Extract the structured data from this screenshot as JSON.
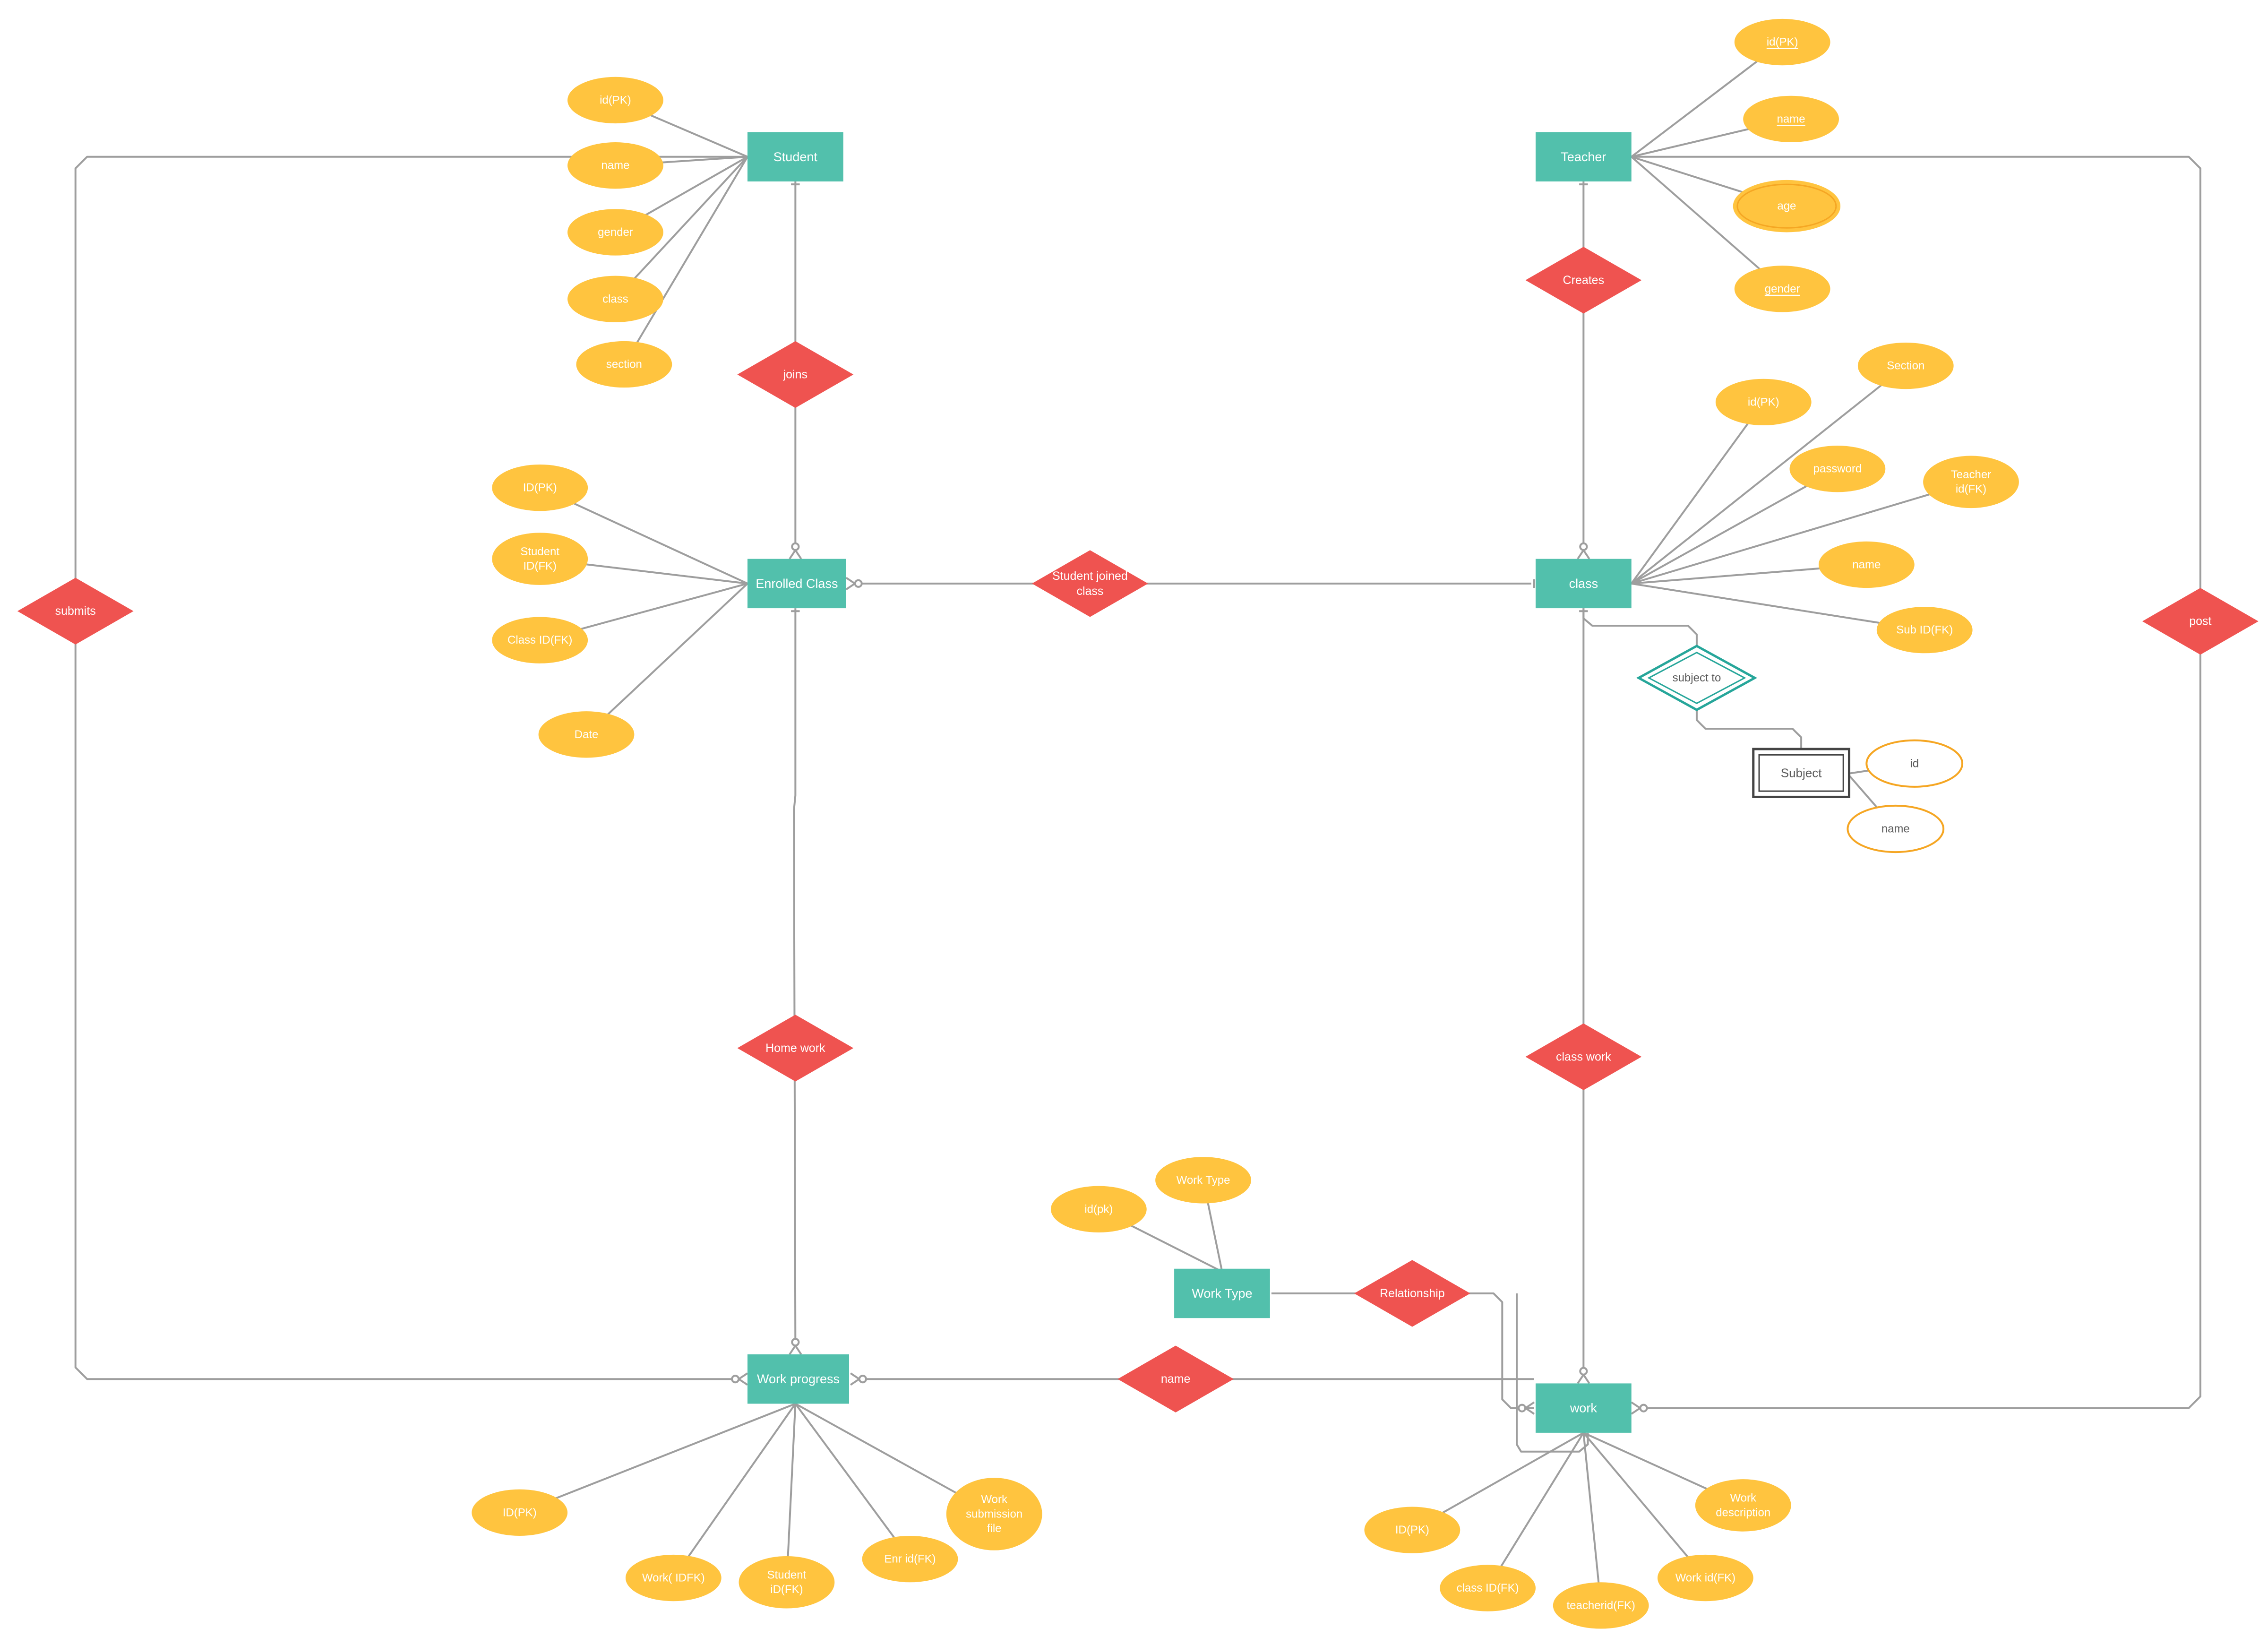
{
  "colors": {
    "entity": "#52c0ac",
    "relationship": "#ef5350",
    "attribute": "#ffc43f",
    "line": "#9e9e9e",
    "weak_entity_stroke": "#444444",
    "identifying_rel_stroke": "#26a69a",
    "weak_attr_stroke": "#f5a623",
    "label_light": "#ffffff",
    "label_dark": "#5a5a5a"
  },
  "entities": {
    "student": "Student",
    "teacher": "Teacher",
    "enrolled_class": "Enrolled Class",
    "class": "class",
    "work_progress": "Work progress",
    "work_type": "Work Type",
    "work": "work",
    "subject": "Subject"
  },
  "relationships": {
    "joins": "joins",
    "creates": "Creates",
    "student_joined_class": [
      "Student joined",
      "class"
    ],
    "submits": "submits",
    "post": "post",
    "subject_to": "subject to",
    "home_work": "Home work",
    "class_work": "class work",
    "relationship": "Relationship",
    "name": "name"
  },
  "attributes": {
    "student": [
      "id(PK)",
      "name",
      "gender",
      "class",
      "section"
    ],
    "teacher": [
      "id(PK)",
      "name",
      "age",
      "gender"
    ],
    "enrolled_class": [
      "ID(PK)",
      [
        "Student",
        "ID(FK)"
      ],
      "Class ID(FK)",
      "Date"
    ],
    "class": [
      "id(PK)",
      "Section",
      "password",
      [
        "Teacher",
        "id(FK)"
      ],
      "name",
      "Sub ID(FK)"
    ],
    "subject": [
      "id",
      "name"
    ],
    "work_type": [
      "id(pk)",
      "Work Type"
    ],
    "work_progress": [
      "ID(PK)",
      "Work( IDFK)",
      [
        "Student",
        "iD(FK)"
      ],
      "Enr id(FK)",
      [
        "Work",
        "submission",
        "file"
      ]
    ],
    "work": [
      "ID(PK)",
      "class ID(FK)",
      "teacherid(FK)",
      "Work id(FK)",
      [
        "Work",
        "description"
      ]
    ]
  }
}
